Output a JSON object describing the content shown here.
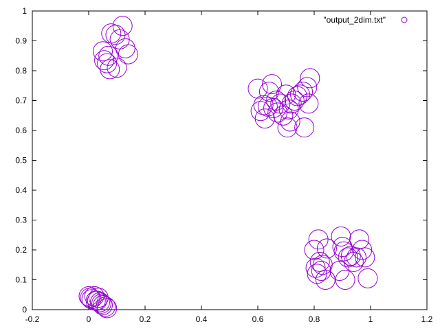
{
  "chart_data": {
    "type": "scatter",
    "xlim": [
      -0.2,
      1.2
    ],
    "ylim": [
      0,
      1
    ],
    "xticks": [
      "-0.2",
      "0",
      "0.2",
      "0.4",
      "0.6",
      "0.8",
      "1",
      "1.2"
    ],
    "yticks": [
      "0",
      "0.1",
      "0.2",
      "0.3",
      "0.4",
      "0.5",
      "0.6",
      "0.7",
      "0.8",
      "0.9",
      "1"
    ],
    "legend_position": "top-right",
    "grid": false,
    "marker": "open-circle",
    "series": [
      {
        "name": "\"output_2dim.txt\"",
        "color": "#9400d3",
        "points": [
          [
            0.0,
            0.045
          ],
          [
            0.005,
            0.04
          ],
          [
            0.01,
            0.035
          ],
          [
            0.02,
            0.045
          ],
          [
            0.03,
            0.03
          ],
          [
            0.035,
            0.04
          ],
          [
            0.04,
            0.025
          ],
          [
            0.045,
            0.02
          ],
          [
            0.05,
            0.015
          ],
          [
            0.06,
            0.01
          ],
          [
            0.065,
            0.005
          ],
          [
            0.025,
            0.03
          ],
          [
            0.05,
            0.865
          ],
          [
            0.055,
            0.835
          ],
          [
            0.065,
            0.825
          ],
          [
            0.075,
            0.805
          ],
          [
            0.08,
            0.925
          ],
          [
            0.095,
            0.92
          ],
          [
            0.1,
            0.81
          ],
          [
            0.11,
            0.905
          ],
          [
            0.12,
            0.95
          ],
          [
            0.13,
            0.875
          ],
          [
            0.14,
            0.855
          ],
          [
            0.07,
            0.85
          ],
          [
            0.6,
            0.74
          ],
          [
            0.61,
            0.665
          ],
          [
            0.62,
            0.685
          ],
          [
            0.625,
            0.64
          ],
          [
            0.635,
            0.68
          ],
          [
            0.64,
            0.73
          ],
          [
            0.65,
            0.755
          ],
          [
            0.655,
            0.675
          ],
          [
            0.665,
            0.7
          ],
          [
            0.67,
            0.66
          ],
          [
            0.68,
            0.69
          ],
          [
            0.69,
            0.65
          ],
          [
            0.7,
            0.72
          ],
          [
            0.705,
            0.61
          ],
          [
            0.71,
            0.67
          ],
          [
            0.715,
            0.63
          ],
          [
            0.72,
            0.69
          ],
          [
            0.73,
            0.7
          ],
          [
            0.74,
            0.715
          ],
          [
            0.75,
            0.72
          ],
          [
            0.76,
            0.73
          ],
          [
            0.765,
            0.61
          ],
          [
            0.775,
            0.745
          ],
          [
            0.78,
            0.69
          ],
          [
            0.785,
            0.775
          ],
          [
            0.8,
            0.2
          ],
          [
            0.805,
            0.14
          ],
          [
            0.81,
            0.12
          ],
          [
            0.815,
            0.235
          ],
          [
            0.82,
            0.16
          ],
          [
            0.825,
            0.13
          ],
          [
            0.83,
            0.15
          ],
          [
            0.84,
            0.1
          ],
          [
            0.845,
            0.205
          ],
          [
            0.89,
            0.13
          ],
          [
            0.895,
            0.245
          ],
          [
            0.9,
            0.21
          ],
          [
            0.905,
            0.195
          ],
          [
            0.91,
            0.1
          ],
          [
            0.92,
            0.175
          ],
          [
            0.93,
            0.18
          ],
          [
            0.94,
            0.16
          ],
          [
            0.95,
            0.175
          ],
          [
            0.96,
            0.235
          ],
          [
            0.97,
            0.2
          ],
          [
            0.98,
            0.175
          ],
          [
            0.99,
            0.105
          ]
        ]
      }
    ]
  }
}
